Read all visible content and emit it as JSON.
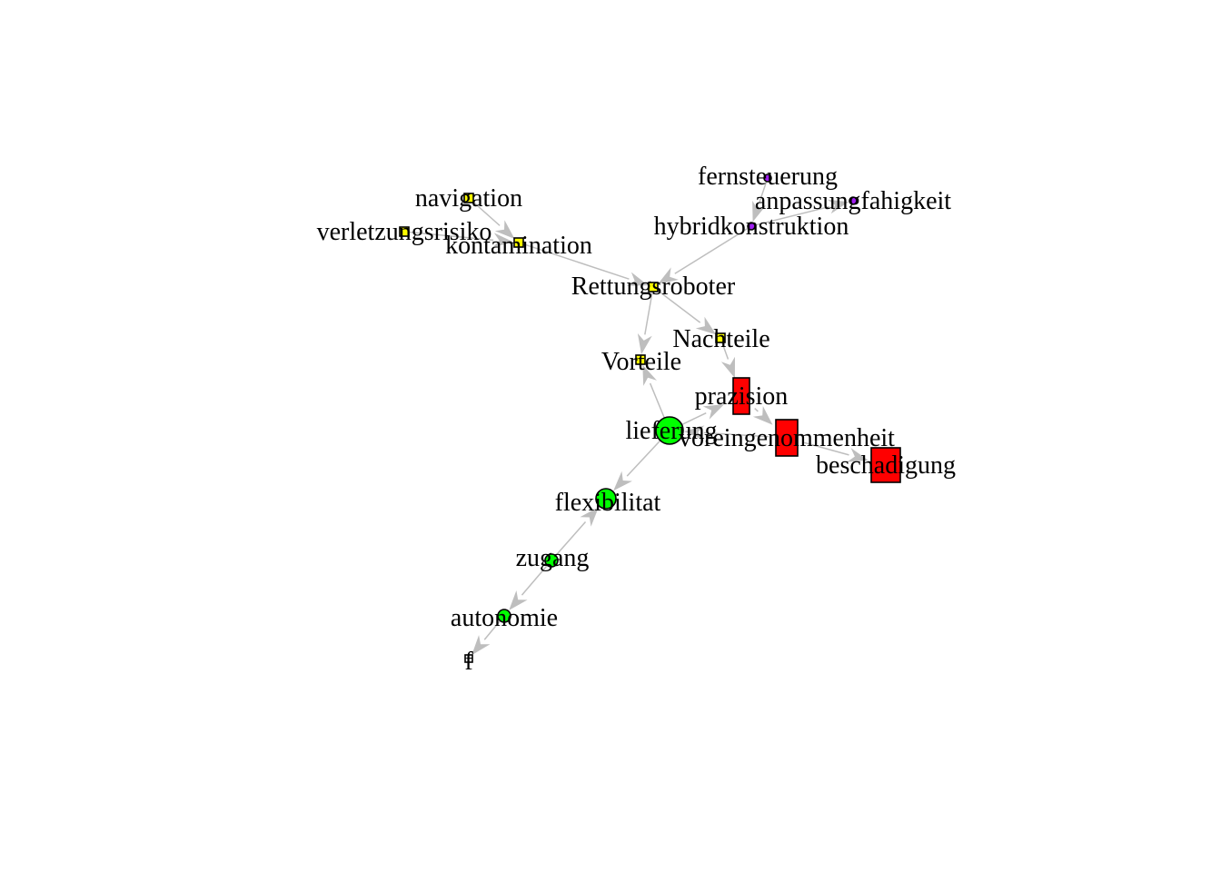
{
  "colors": {
    "edge": "#bebebe",
    "yellow": "#ffff00",
    "purple": "#a020f0",
    "green": "#00ff00",
    "red": "#ff0000",
    "white": "#ffffff"
  },
  "nodes": [
    {
      "id": "navigation",
      "label": "navigation",
      "shape": "square",
      "color": "yellow"
    },
    {
      "id": "verletzungsrisiko",
      "label": "verletzungsrisiko",
      "shape": "square",
      "color": "yellow"
    },
    {
      "id": "kontamination",
      "label": "kontamination",
      "shape": "square",
      "color": "yellow"
    },
    {
      "id": "fernsteuerung",
      "label": "fernsteuerung",
      "shape": "circle",
      "color": "purple"
    },
    {
      "id": "anpassungfahigkeit",
      "label": "anpassungfahigkeit",
      "shape": "circle",
      "color": "purple"
    },
    {
      "id": "hybridkonstruktion",
      "label": "hybridkonstruktion",
      "shape": "circle",
      "color": "purple"
    },
    {
      "id": "Rettungsroboter",
      "label": "Rettungsroboter",
      "shape": "square",
      "color": "yellow"
    },
    {
      "id": "Nachteile",
      "label": "Nachteile",
      "shape": "square",
      "color": "yellow"
    },
    {
      "id": "Vorteile",
      "label": "Vorteile",
      "shape": "square",
      "color": "yellow"
    },
    {
      "id": "prazision",
      "label": "prazision",
      "shape": "rect",
      "color": "red"
    },
    {
      "id": "voreingenommenheit",
      "label": "voreingenommenheit",
      "shape": "rect",
      "color": "red"
    },
    {
      "id": "beschadigung",
      "label": "beschadigung",
      "shape": "rect",
      "color": "red"
    },
    {
      "id": "lieferung",
      "label": "lieferung",
      "shape": "circle",
      "color": "green"
    },
    {
      "id": "flexibilitat",
      "label": "flexibilitat",
      "shape": "circle",
      "color": "green"
    },
    {
      "id": "zugang",
      "label": "zugang",
      "shape": "circle",
      "color": "green"
    },
    {
      "id": "autonomie",
      "label": "autonomie",
      "shape": "circle",
      "color": "green"
    },
    {
      "id": "f",
      "label": "f",
      "shape": "square",
      "color": "white"
    }
  ],
  "edges": [
    {
      "from": "navigation",
      "to": "kontamination"
    },
    {
      "from": "verletzungsrisiko",
      "to": "kontamination"
    },
    {
      "from": "kontamination",
      "to": "Rettungsroboter"
    },
    {
      "from": "fernsteuerung",
      "to": "hybridkonstruktion"
    },
    {
      "from": "hybridkonstruktion",
      "to": "anpassungfahigkeit"
    },
    {
      "from": "hybridkonstruktion",
      "to": "Rettungsroboter"
    },
    {
      "from": "Rettungsroboter",
      "to": "Nachteile"
    },
    {
      "from": "Rettungsroboter",
      "to": "Vorteile"
    },
    {
      "from": "Nachteile",
      "to": "prazision"
    },
    {
      "from": "lieferung",
      "to": "Vorteile"
    },
    {
      "from": "lieferung",
      "to": "prazision"
    },
    {
      "from": "prazision",
      "to": "voreingenommenheit"
    },
    {
      "from": "voreingenommenheit",
      "to": "beschadigung"
    },
    {
      "from": "voreingenommenheit",
      "to": "lieferung"
    },
    {
      "from": "lieferung",
      "to": "flexibilitat"
    },
    {
      "from": "zugang",
      "to": "flexibilitat"
    },
    {
      "from": "zugang",
      "to": "autonomie"
    },
    {
      "from": "autonomie",
      "to": "f"
    }
  ]
}
